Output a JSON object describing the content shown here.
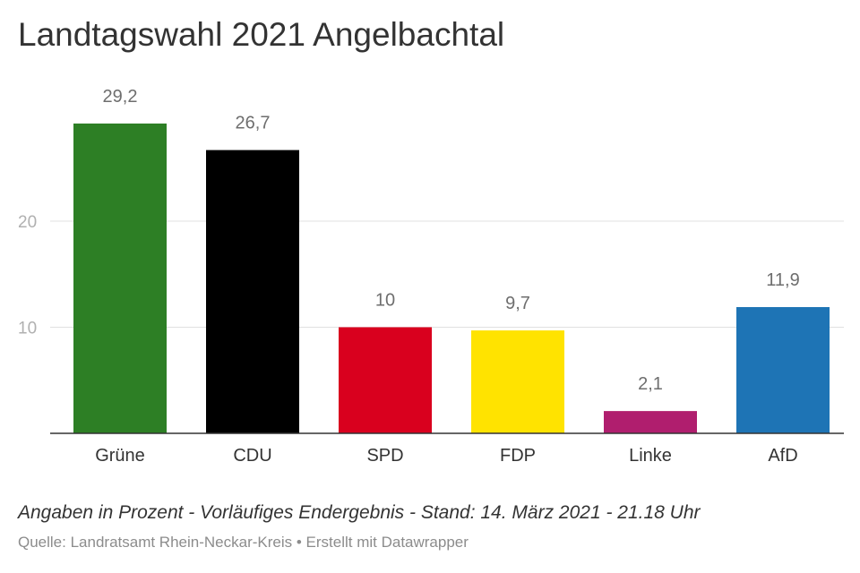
{
  "chart_data": {
    "type": "bar",
    "title": "Landtagswahl 2021 Angelbachtal",
    "categories": [
      "Grüne",
      "CDU",
      "SPD",
      "FDP",
      "Linke",
      "AfD"
    ],
    "values": [
      29.2,
      26.7,
      10,
      9.7,
      2.1,
      11.9
    ],
    "value_labels": [
      "29,2",
      "26,7",
      "10",
      "9,7",
      "2,1",
      "11,9"
    ],
    "colors": [
      "#2d7f25",
      "#000000",
      "#d9001e",
      "#ffe300",
      "#b01e6e",
      "#1e74b5"
    ],
    "yticks": [
      10,
      20
    ],
    "ytick_labels": [
      "10",
      "20"
    ],
    "ylim": [
      0,
      30
    ],
    "grid": true,
    "legend": "none"
  },
  "footer": {
    "note": "Angaben in Prozent - Vorläufiges Endergebnis - Stand: 14. März 2021 - 21.18 Uhr",
    "source": "Quelle: Landratsamt Rhein-Neckar-Kreis • Erstellt mit Datawrapper"
  }
}
